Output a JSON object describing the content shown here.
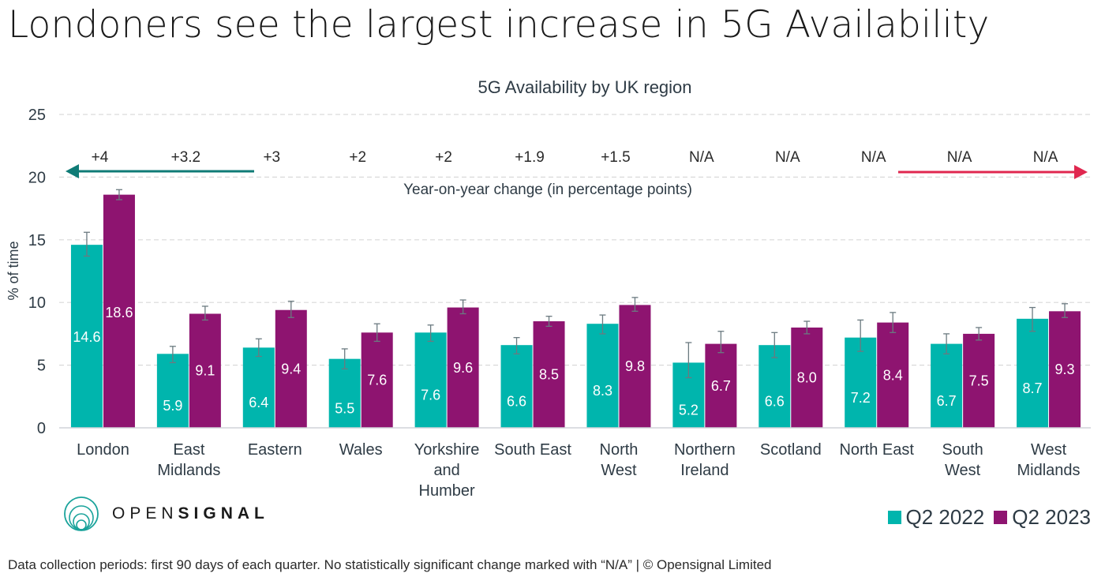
{
  "header": {
    "title": "Londoners see the largest increase in 5G Availability"
  },
  "footer": {
    "note": "Data collection periods: first 90 days of each quarter. No statistically significant change marked with “N/A” | © Opensignal Limited"
  },
  "logo": {
    "icon": "concentric-circles-icon",
    "text_thin": "OPEN",
    "text_bold": "SIGNAL"
  },
  "colors": {
    "q2_2022": "#00b5ad",
    "q2_2023": "#8e1470",
    "left_arrow": "#0f7b76",
    "right_arrow": "#e0274f",
    "error_bar": "#6b7a80",
    "grid": "#d9d9d9",
    "axis_text": "#2e3b45"
  },
  "legend": {
    "items": [
      {
        "label": "Q2 2022",
        "color_key": "q2_2022"
      },
      {
        "label": "Q2 2023",
        "color_key": "q2_2023"
      }
    ]
  },
  "chart_data": {
    "type": "bar",
    "title": "5G Availability by UK region",
    "xlabel": "",
    "ylabel": "% of time",
    "ylim": [
      0,
      25
    ],
    "yticks": [
      0,
      5,
      10,
      15,
      20,
      25
    ],
    "grid": true,
    "legend_position": "bottom-right",
    "annotation_label": "Year-on-year change (in percentage points)",
    "categories": [
      "London",
      "East Midlands",
      "Eastern",
      "Wales",
      "Yorkshire and Humber",
      "South East",
      "North West",
      "Northern Ireland",
      "Scotland",
      "North East",
      "South West",
      "West Midlands"
    ],
    "category_lines": [
      [
        "London"
      ],
      [
        "East",
        "Midlands"
      ],
      [
        "Eastern"
      ],
      [
        "Wales"
      ],
      [
        "Yorkshire",
        "and",
        "Humber"
      ],
      [
        "South East"
      ],
      [
        "North",
        "West"
      ],
      [
        "Northern",
        "Ireland"
      ],
      [
        "Scotland"
      ],
      [
        "North East"
      ],
      [
        "South",
        "West"
      ],
      [
        "West",
        "Midlands"
      ]
    ],
    "yoy_change": [
      "+4",
      "+3.2",
      "+3",
      "+2",
      "+2",
      "+1.9",
      "+1.5",
      "N/A",
      "N/A",
      "N/A",
      "N/A",
      "N/A"
    ],
    "series": [
      {
        "name": "Q2 2022",
        "values": [
          14.6,
          5.9,
          6.4,
          5.5,
          7.6,
          6.6,
          8.3,
          5.2,
          6.6,
          7.2,
          6.7,
          8.7
        ],
        "labels": [
          "14.6",
          "5.9",
          "6.4",
          "5.5",
          "7.6",
          "6.6",
          "8.3",
          "5.2",
          "6.6",
          "7.2",
          "6.7",
          "8.7"
        ],
        "error_low": [
          13.7,
          5.2,
          5.7,
          4.7,
          6.9,
          5.9,
          7.5,
          4.0,
          5.6,
          6.1,
          5.9,
          7.7
        ],
        "error_high": [
          15.6,
          6.5,
          7.1,
          6.3,
          8.2,
          7.2,
          9.0,
          6.8,
          7.6,
          8.6,
          7.5,
          9.6
        ]
      },
      {
        "name": "Q2 2023",
        "values": [
          18.6,
          9.1,
          9.4,
          7.6,
          9.6,
          8.5,
          9.8,
          6.7,
          8.0,
          8.4,
          7.5,
          9.3
        ],
        "labels": [
          "18.6",
          "9.1",
          "9.4",
          "7.6",
          "9.6",
          "8.5",
          "9.8",
          "6.7",
          "8.0",
          "8.4",
          "7.5",
          "9.3"
        ],
        "error_low": [
          18.2,
          8.6,
          8.8,
          6.9,
          9.1,
          8.1,
          9.3,
          6.0,
          7.5,
          7.6,
          7.0,
          8.8
        ],
        "error_high": [
          19.0,
          9.7,
          10.1,
          8.3,
          10.2,
          8.9,
          10.4,
          7.7,
          8.5,
          9.2,
          8.0,
          9.9
        ]
      }
    ]
  }
}
